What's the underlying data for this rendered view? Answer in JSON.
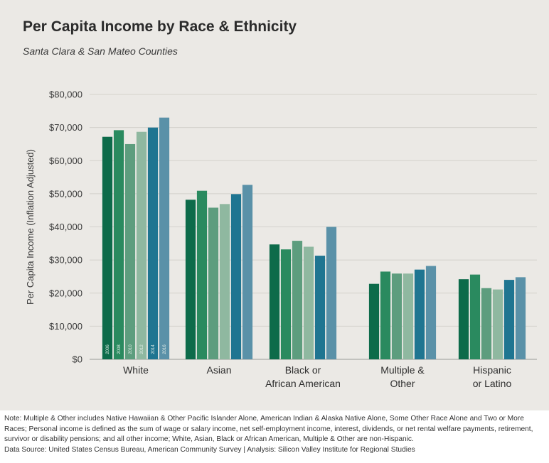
{
  "header": {
    "title": "Per Capita Income by Race & Ethnicity",
    "subtitle": "Santa Clara & San Mateo Counties"
  },
  "chart_data": {
    "type": "bar",
    "ylabel": "Per Capita Income (Inflation Adjusted)",
    "ylim": [
      0,
      80000
    ],
    "yticks": [
      "$0",
      "$10,000",
      "$20,000",
      "$30,000",
      "$40,000",
      "$50,000",
      "$60,000",
      "$70,000",
      "$80,000"
    ],
    "grid": true,
    "categories": [
      [
        "White"
      ],
      [
        "Asian"
      ],
      [
        "Black or",
        "African American"
      ],
      [
        "Multiple &",
        "Other"
      ],
      [
        "Hispanic",
        "or Latino"
      ]
    ],
    "series": [
      {
        "name": "2006",
        "color": "#0d6b4a",
        "values": [
          67200,
          48200,
          34700,
          22800,
          24200
        ]
      },
      {
        "name": "2008",
        "color": "#2a8a5f",
        "values": [
          69200,
          50900,
          33200,
          26500,
          25600
        ]
      },
      {
        "name": "2010",
        "color": "#5d9d7e",
        "values": [
          65000,
          45800,
          35800,
          25900,
          21500
        ]
      },
      {
        "name": "2012",
        "color": "#8fb8a0",
        "values": [
          68700,
          46900,
          34000,
          25900,
          21100
        ]
      },
      {
        "name": "2014",
        "color": "#1f7591",
        "values": [
          70000,
          49900,
          31300,
          27100,
          24000
        ]
      },
      {
        "name": "2016",
        "color": "#5a91a8",
        "values": [
          73000,
          52700,
          40000,
          28200,
          24800
        ]
      }
    ]
  },
  "notes": {
    "note": "Note: Multiple & Other includes Native Hawaiian & Other Pacific Islander Alone, American Indian & Alaska Native Alone, Some Other Race Alone and Two or More Races; Personal income is defined as the sum of wage or salary income, net self-employment income, interest, dividends, or net rental welfare payments, retirement, survivor or disability pensions; and all other income; White, Asian, Black or African American, Multiple & Other are non-Hispanic.",
    "source": "Data Source: United States Census Bureau, American Community Survey | Analysis: Silicon Valley Institute for Regional Studies"
  }
}
